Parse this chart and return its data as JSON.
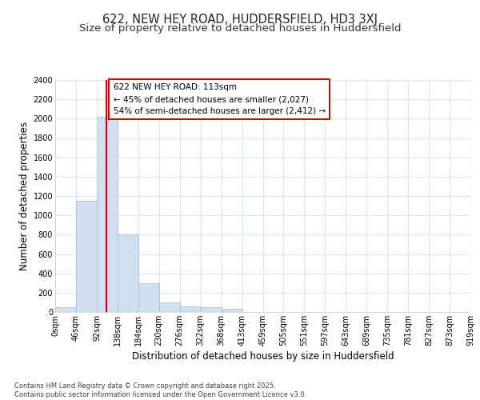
{
  "title1": "622, NEW HEY ROAD, HUDDERSFIELD, HD3 3XJ",
  "title2": "Size of property relative to detached houses in Huddersfield",
  "xlabel": "Distribution of detached houses by size in Huddersfield",
  "ylabel": "Number of detached properties",
  "bin_labels": [
    "0sqm",
    "46sqm",
    "92sqm",
    "138sqm",
    "184sqm",
    "230sqm",
    "276sqm",
    "322sqm",
    "368sqm",
    "413sqm",
    "459sqm",
    "505sqm",
    "551sqm",
    "597sqm",
    "643sqm",
    "689sqm",
    "735sqm",
    "781sqm",
    "827sqm",
    "873sqm",
    "919sqm"
  ],
  "bar_values": [
    50,
    1150,
    2020,
    800,
    295,
    100,
    55,
    50,
    30,
    0,
    0,
    0,
    0,
    0,
    0,
    0,
    0,
    0,
    0,
    0
  ],
  "bar_color": "#d0e0f0",
  "bar_edge_color": "#a0bcd8",
  "vline_x": 2.45,
  "vline_color": "#cc0000",
  "ylim": [
    0,
    2400
  ],
  "yticks": [
    0,
    200,
    400,
    600,
    800,
    1000,
    1200,
    1400,
    1600,
    1800,
    2000,
    2200,
    2400
  ],
  "annotation_text": "622 NEW HEY ROAD: 113sqm\n← 45% of detached houses are smaller (2,027)\n54% of semi-detached houses are larger (2,412) →",
  "annotation_box_color": "#cc0000",
  "footer_text": "Contains HM Land Registry data © Crown copyright and database right 2025.\nContains public sector information licensed under the Open Government Licence v3.0.",
  "background_color": "#ffffff",
  "grid_color": "#d8e4f0",
  "title_fontsize": 10.5,
  "subtitle_fontsize": 9.5,
  "axis_label_fontsize": 8.5,
  "tick_fontsize": 7,
  "footer_fontsize": 6,
  "annotation_fontsize": 7.5
}
